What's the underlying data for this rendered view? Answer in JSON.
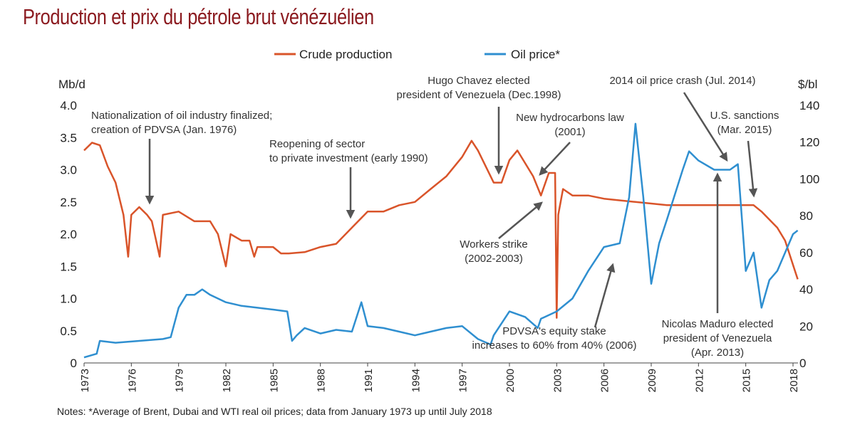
{
  "title": "Production et prix du pétrole brut vénézuélien",
  "notes": "Notes: *Average of Brent, Dubai and WTI real oil prices; data from January 1973 up until July 2018",
  "chart_data": {
    "type": "line",
    "xlim": [
      1973,
      2018.5
    ],
    "x_ticks": [
      "1973",
      "1976",
      "1979",
      "1982",
      "1985",
      "1988",
      "1991",
      "1994",
      "1997",
      "2000",
      "2003",
      "2006",
      "2009",
      "2012",
      "2015",
      "2018"
    ],
    "y_left": {
      "label": "Mb/d",
      "ylim": [
        0,
        4
      ],
      "ticks": [
        "0",
        "0.5",
        "1.0",
        "1.5",
        "2.0",
        "2.5",
        "3.0",
        "3.5",
        "4.0"
      ]
    },
    "y_right": {
      "label": "$/bl",
      "ylim": [
        0,
        140
      ],
      "ticks": [
        "0",
        "20",
        "40",
        "60",
        "80",
        "100",
        "120",
        "140"
      ]
    },
    "legend_position": "top",
    "series": [
      {
        "name": "Crude production",
        "axis": "left",
        "color": "#d9542a",
        "points": [
          [
            1973,
            3.3
          ],
          [
            1973.5,
            3.42
          ],
          [
            1974,
            3.38
          ],
          [
            1974.5,
            3.05
          ],
          [
            1975,
            2.8
          ],
          [
            1975.5,
            2.3
          ],
          [
            1975.8,
            1.65
          ],
          [
            1976,
            2.3
          ],
          [
            1976.5,
            2.42
          ],
          [
            1977,
            2.3
          ],
          [
            1977.3,
            2.2
          ],
          [
            1977.8,
            1.65
          ],
          [
            1978,
            2.3
          ],
          [
            1979,
            2.35
          ],
          [
            1980,
            2.2
          ],
          [
            1981,
            2.2
          ],
          [
            1981.5,
            2.0
          ],
          [
            1982,
            1.5
          ],
          [
            1982.3,
            2.0
          ],
          [
            1983,
            1.9
          ],
          [
            1983.5,
            1.9
          ],
          [
            1983.8,
            1.65
          ],
          [
            1984,
            1.8
          ],
          [
            1985,
            1.8
          ],
          [
            1985.5,
            1.7
          ],
          [
            1986,
            1.7
          ],
          [
            1987,
            1.72
          ],
          [
            1988,
            1.8
          ],
          [
            1989,
            1.85
          ],
          [
            1990,
            2.1
          ],
          [
            1991,
            2.35
          ],
          [
            1992,
            2.35
          ],
          [
            1993,
            2.45
          ],
          [
            1994,
            2.5
          ],
          [
            1995,
            2.7
          ],
          [
            1996,
            2.9
          ],
          [
            1997,
            3.2
          ],
          [
            1997.6,
            3.45
          ],
          [
            1998,
            3.3
          ],
          [
            1999,
            2.8
          ],
          [
            1999.5,
            2.8
          ],
          [
            2000,
            3.15
          ],
          [
            2000.5,
            3.3
          ],
          [
            2001,
            3.1
          ],
          [
            2001.5,
            2.9
          ],
          [
            2002,
            2.6
          ],
          [
            2002.5,
            2.95
          ],
          [
            2002.9,
            2.95
          ],
          [
            2003,
            0.7
          ],
          [
            2003.1,
            2.3
          ],
          [
            2003.4,
            2.7
          ],
          [
            2004,
            2.6
          ],
          [
            2005,
            2.6
          ],
          [
            2006,
            2.55
          ],
          [
            2008,
            2.5
          ],
          [
            2010,
            2.45
          ],
          [
            2015.5,
            2.45
          ],
          [
            2016,
            2.35
          ],
          [
            2017,
            2.1
          ],
          [
            2017.5,
            1.9
          ],
          [
            2018.3,
            1.3
          ]
        ]
      },
      {
        "name": "Oil price*",
        "axis": "right",
        "color": "#2f8fd0",
        "points": [
          [
            1973,
            3
          ],
          [
            1973.8,
            5
          ],
          [
            1974,
            12
          ],
          [
            1975,
            11
          ],
          [
            1978,
            13
          ],
          [
            1978.5,
            14
          ],
          [
            1979,
            30
          ],
          [
            1979.5,
            37
          ],
          [
            1980,
            37
          ],
          [
            1980.5,
            40
          ],
          [
            1981,
            37
          ],
          [
            1982,
            33
          ],
          [
            1983,
            31
          ],
          [
            1984,
            30
          ],
          [
            1985,
            29
          ],
          [
            1985.9,
            28
          ],
          [
            1986.2,
            12
          ],
          [
            1986.5,
            15
          ],
          [
            1987,
            19
          ],
          [
            1988,
            16
          ],
          [
            1989,
            18
          ],
          [
            1990,
            17
          ],
          [
            1990.6,
            33
          ],
          [
            1991,
            20
          ],
          [
            1992,
            19
          ],
          [
            1993,
            17
          ],
          [
            1994,
            15
          ],
          [
            1995,
            17
          ],
          [
            1996,
            19
          ],
          [
            1997,
            20
          ],
          [
            1998,
            13
          ],
          [
            1998.8,
            10
          ],
          [
            1999,
            15
          ],
          [
            2000,
            28
          ],
          [
            2001,
            25
          ],
          [
            2001.8,
            19
          ],
          [
            2002,
            24
          ],
          [
            2003,
            28
          ],
          [
            2004,
            35
          ],
          [
            2005,
            50
          ],
          [
            2006,
            63
          ],
          [
            2007,
            65
          ],
          [
            2007.6,
            90
          ],
          [
            2008,
            130
          ],
          [
            2008.5,
            90
          ],
          [
            2009,
            43
          ],
          [
            2009.5,
            65
          ],
          [
            2010,
            78
          ],
          [
            2011,
            105
          ],
          [
            2011.4,
            115
          ],
          [
            2012,
            110
          ],
          [
            2013,
            105
          ],
          [
            2014,
            105
          ],
          [
            2014.5,
            108
          ],
          [
            2015,
            50
          ],
          [
            2015.5,
            60
          ],
          [
            2016,
            30
          ],
          [
            2016.5,
            45
          ],
          [
            2017,
            50
          ],
          [
            2018,
            70
          ],
          [
            2018.3,
            72
          ]
        ]
      }
    ],
    "annotations": [
      {
        "lines": [
          "Nationalization of oil industry finalized;",
          "creation of PDVSA (Jan. 1976)"
        ]
      },
      {
        "lines": [
          "Reopening of sector",
          "to private investment (early 1990)"
        ]
      },
      {
        "lines": [
          "Hugo Chavez elected",
          "president of Venezuela (Dec.1998)"
        ]
      },
      {
        "lines": [
          "New hydrocarbons law",
          "(2001)"
        ]
      },
      {
        "lines": [
          "2014 oil price crash (Jul. 2014)"
        ]
      },
      {
        "lines": [
          "U.S. sanctions",
          "(Mar. 2015)"
        ]
      },
      {
        "lines": [
          "Workers strike",
          "(2002-2003)"
        ]
      },
      {
        "lines": [
          "PDVSA's equity stake",
          "increases to 60% from 40% (2006)"
        ]
      },
      {
        "lines": [
          "Nicolas Maduro elected",
          "president of Venezuela",
          "(Apr. 2013)"
        ]
      }
    ]
  }
}
